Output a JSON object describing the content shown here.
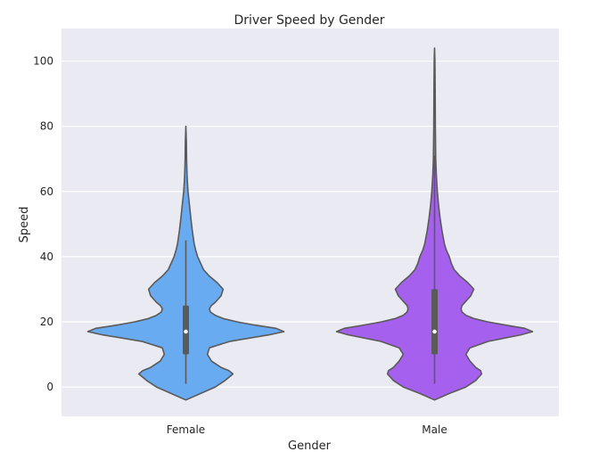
{
  "chart_data": {
    "type": "violin",
    "title": "Driver Speed by Gender",
    "xlabel": "Gender",
    "ylabel": "Speed",
    "ylim": [
      -9,
      110
    ],
    "yticks": [
      0,
      20,
      40,
      60,
      80,
      100
    ],
    "grid": true,
    "categories": [
      "Female",
      "Male"
    ],
    "colors": {
      "Female": "#69abf0",
      "Male": "#a660ee",
      "outline": "#5a5a5a",
      "plot_bg": "#eaeaf2",
      "grid": "#ffffff"
    },
    "series": [
      {
        "category": "Female",
        "min": -4,
        "max": 80,
        "whisker_low": 1,
        "whisker_high": 45,
        "q1": 10,
        "median": 17,
        "q3": 25,
        "density": [
          [
            -4,
            0
          ],
          [
            -2,
            0.15
          ],
          [
            0,
            0.3
          ],
          [
            2,
            0.4
          ],
          [
            4,
            0.48
          ],
          [
            5,
            0.44
          ],
          [
            6,
            0.36
          ],
          [
            8,
            0.26
          ],
          [
            10,
            0.22
          ],
          [
            12,
            0.24
          ],
          [
            14,
            0.45
          ],
          [
            16,
            0.85
          ],
          [
            17,
            1.0
          ],
          [
            18,
            0.92
          ],
          [
            19,
            0.7
          ],
          [
            20,
            0.52
          ],
          [
            21,
            0.38
          ],
          [
            22,
            0.3
          ],
          [
            23,
            0.25
          ],
          [
            24,
            0.24
          ],
          [
            25,
            0.26
          ],
          [
            26,
            0.3
          ],
          [
            28,
            0.36
          ],
          [
            30,
            0.38
          ],
          [
            32,
            0.32
          ],
          [
            34,
            0.24
          ],
          [
            36,
            0.18
          ],
          [
            38,
            0.15
          ],
          [
            40,
            0.12
          ],
          [
            42,
            0.1
          ],
          [
            44,
            0.085
          ],
          [
            48,
            0.065
          ],
          [
            52,
            0.05
          ],
          [
            56,
            0.036
          ],
          [
            60,
            0.022
          ],
          [
            65,
            0.012
          ],
          [
            70,
            0.007
          ],
          [
            75,
            0.005
          ],
          [
            80,
            0
          ]
        ]
      },
      {
        "category": "Male",
        "min": -4,
        "max": 104,
        "whisker_low": 1,
        "whisker_high": 71,
        "q1": 10,
        "median": 17,
        "q3": 30,
        "density": [
          [
            -4,
            0
          ],
          [
            -2,
            0.15
          ],
          [
            0,
            0.32
          ],
          [
            2,
            0.42
          ],
          [
            4,
            0.48
          ],
          [
            5,
            0.47
          ],
          [
            6,
            0.42
          ],
          [
            8,
            0.36
          ],
          [
            10,
            0.32
          ],
          [
            12,
            0.36
          ],
          [
            14,
            0.55
          ],
          [
            16,
            0.88
          ],
          [
            17,
            1.0
          ],
          [
            18,
            0.92
          ],
          [
            19,
            0.72
          ],
          [
            20,
            0.54
          ],
          [
            21,
            0.4
          ],
          [
            22,
            0.32
          ],
          [
            23,
            0.28
          ],
          [
            24,
            0.27
          ],
          [
            25,
            0.28
          ],
          [
            26,
            0.31
          ],
          [
            28,
            0.37
          ],
          [
            30,
            0.4
          ],
          [
            32,
            0.34
          ],
          [
            34,
            0.26
          ],
          [
            36,
            0.2
          ],
          [
            38,
            0.17
          ],
          [
            40,
            0.15
          ],
          [
            42,
            0.12
          ],
          [
            44,
            0.1
          ],
          [
            48,
            0.075
          ],
          [
            52,
            0.055
          ],
          [
            56,
            0.04
          ],
          [
            60,
            0.028
          ],
          [
            65,
            0.018
          ],
          [
            70,
            0.012
          ],
          [
            80,
            0.008
          ],
          [
            90,
            0.006
          ],
          [
            100,
            0.004
          ],
          [
            104,
            0
          ]
        ]
      }
    ]
  }
}
